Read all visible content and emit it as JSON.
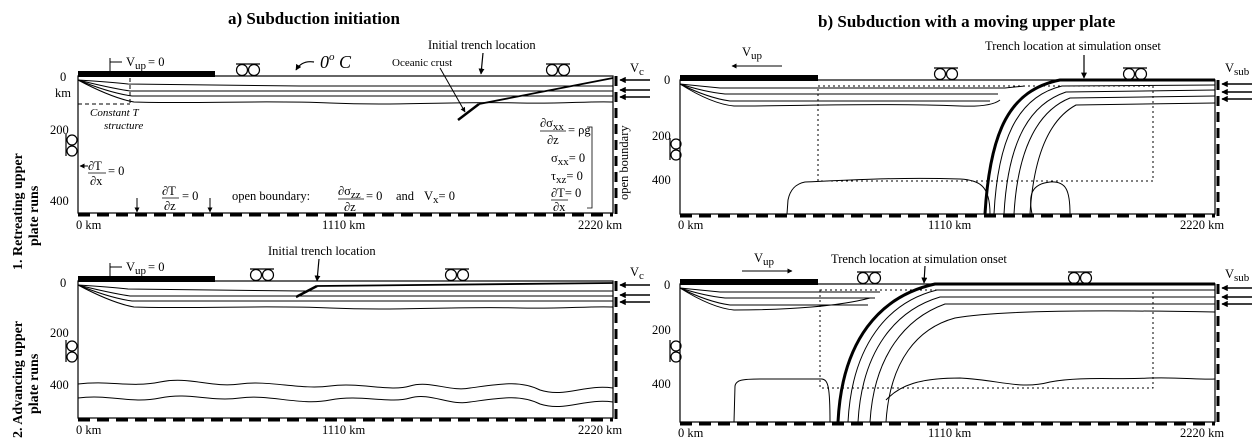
{
  "titles": {
    "a": "a) Subduction initiation",
    "b": "b) Subduction with a moving upper plate"
  },
  "rows": {
    "row1_line1": "1. Retreating upper",
    "row1_line2": "plate runs",
    "row2_line1": "2. Advancing upper",
    "row2_line2": "plate runs"
  },
  "axis": {
    "y0": "0",
    "y200": "200",
    "y400": "400",
    "km": "km",
    "x0": "0 km",
    "xmid": "1110 km",
    "xend": "2220 km"
  },
  "labels": {
    "vup_zero": "V",
    "vup_sub": "up",
    "eq_zero": "= 0",
    "vup": "V",
    "zero_c": "0",
    "deg_c": "o",
    "c_letter": " C",
    "initial_trench": "Initial trench location",
    "oceanic_crust": "Oceanic crust",
    "constant_t1": "Constant T",
    "constant_t2": "structure",
    "vc": "V",
    "vc_sub": "c",
    "vsub": "V",
    "vsub_sub": "sub",
    "trench_onset": "Trench location at simulation onset",
    "open_boundary": "open boundary",
    "open_boundary_colon": "open boundary:",
    "and": "and",
    "bc_dT": "∂T",
    "bc_dx": "∂x",
    "bc_dz": "∂z",
    "bc_eq0": "= 0",
    "bc_sxx_num": "∂σ",
    "bc_sxx_sub": "xx",
    "bc_eq_rhog": "= ρg",
    "bc_sxx0": "σ",
    "bc_txz0": "τ",
    "bc_xz": "xz",
    "bc_szz_sub": "zz",
    "bc_vx": "V",
    "bc_vx_sub": "x"
  },
  "colors": {
    "ink": "#000000",
    "background": "#ffffff"
  }
}
